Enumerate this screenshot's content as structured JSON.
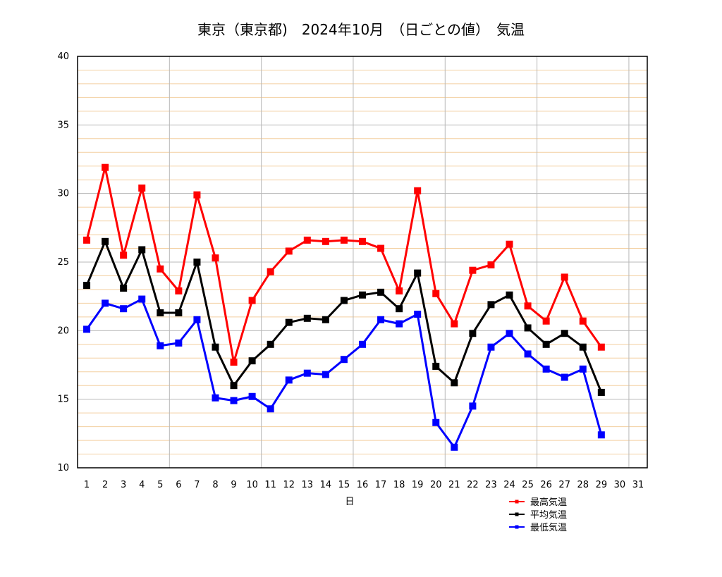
{
  "chart_data": {
    "type": "line",
    "title": "東京（東京都)　2024年10月　（日ごとの値）　気温",
    "xlabel": "日",
    "ylabel": "",
    "x_ticks": [
      "1",
      "2",
      "3",
      "4",
      "5",
      "6",
      "7",
      "8",
      "9",
      "10",
      "11",
      "12",
      "13",
      "14",
      "15",
      "16",
      "17",
      "18",
      "19",
      "20",
      "21",
      "22",
      "23",
      "24",
      "25",
      "26",
      "27",
      "28",
      "29",
      "30",
      "31"
    ],
    "y_ticks": [
      "10",
      "15",
      "20",
      "25",
      "30",
      "35",
      "40"
    ],
    "xlim": [
      0,
      31
    ],
    "ylim": [
      10,
      40
    ],
    "grid": true,
    "legend_position": "bottom-right",
    "series": [
      {
        "name": "最高気温",
        "color": "#ff0000",
        "values": [
          26.6,
          31.9,
          25.5,
          30.4,
          24.5,
          22.9,
          29.9,
          25.3,
          17.7,
          22.2,
          24.3,
          25.8,
          26.6,
          26.5,
          26.6,
          26.5,
          26.0,
          22.9,
          30.2,
          22.7,
          20.5,
          24.4,
          24.8,
          26.3,
          21.8,
          20.7,
          23.9,
          20.7,
          18.8
        ]
      },
      {
        "name": "平均気温",
        "color": "#000000",
        "values": [
          23.3,
          26.5,
          23.1,
          25.9,
          21.3,
          21.3,
          25.0,
          18.8,
          16.0,
          17.8,
          19.0,
          20.6,
          20.9,
          20.8,
          22.2,
          22.6,
          22.8,
          21.6,
          24.2,
          17.4,
          16.2,
          19.8,
          21.9,
          22.6,
          20.2,
          19.0,
          19.8,
          18.8,
          15.5
        ]
      },
      {
        "name": "最低気温",
        "color": "#0000ff",
        "values": [
          20.1,
          22.0,
          21.6,
          22.3,
          18.9,
          19.1,
          20.8,
          15.1,
          14.9,
          15.2,
          14.3,
          16.4,
          16.9,
          16.8,
          17.9,
          19.0,
          20.8,
          20.5,
          21.2,
          13.3,
          11.5,
          14.5,
          18.8,
          19.8,
          18.3,
          17.2,
          16.6,
          17.2,
          12.4
        ]
      }
    ]
  }
}
